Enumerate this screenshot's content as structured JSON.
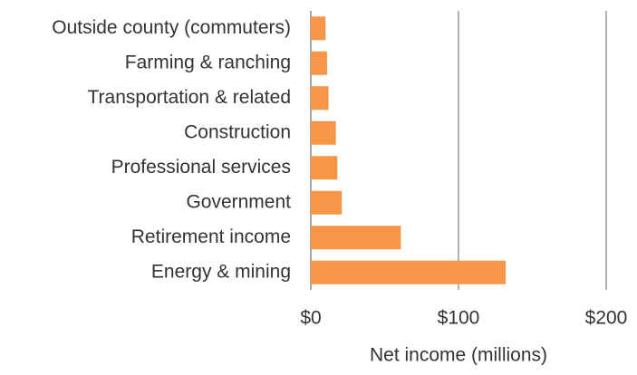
{
  "chart_data": {
    "type": "barh",
    "categories": [
      "Outside county (commuters)",
      "Farming & ranching",
      "Transportation & related",
      "Construction",
      "Professional services",
      "Government",
      "Retirement income",
      "Energy & mining"
    ],
    "values": [
      10,
      11,
      12,
      17,
      18,
      21,
      61,
      132
    ],
    "color": "#f79646",
    "xlabel": "Net income (millions)",
    "xlim": [
      0,
      200
    ],
    "xticks": [
      {
        "value": 0,
        "label": "$0"
      },
      {
        "value": 100,
        "label": "$100"
      },
      {
        "value": 200,
        "label": "$200"
      }
    ],
    "grid": true
  }
}
